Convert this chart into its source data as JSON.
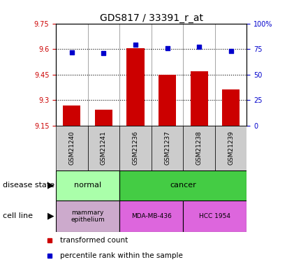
{
  "title": "GDS817 / 33391_r_at",
  "samples": [
    "GSM21240",
    "GSM21241",
    "GSM21236",
    "GSM21237",
    "GSM21238",
    "GSM21239"
  ],
  "bar_values": [
    9.27,
    9.245,
    9.605,
    9.45,
    9.47,
    9.365
  ],
  "percentile_values": [
    72,
    71,
    79,
    76,
    77,
    73
  ],
  "bar_color": "#cc0000",
  "dot_color": "#0000cc",
  "ylim_left": [
    9.15,
    9.75
  ],
  "ylim_right": [
    0,
    100
  ],
  "yticks_left": [
    9.15,
    9.3,
    9.45,
    9.6,
    9.75
  ],
  "yticks_right": [
    0,
    25,
    50,
    75,
    100
  ],
  "normal_color": "#aaffaa",
  "cancer_color": "#44cc44",
  "mammary_color": "#ccaacc",
  "mda_color": "#dd66dd",
  "hcc_color": "#dd66dd",
  "sample_bg_color": "#cccccc",
  "font_size_title": 10,
  "font_size_tick": 7,
  "font_size_legend": 7.5,
  "font_size_label": 8,
  "bar_width": 0.55
}
